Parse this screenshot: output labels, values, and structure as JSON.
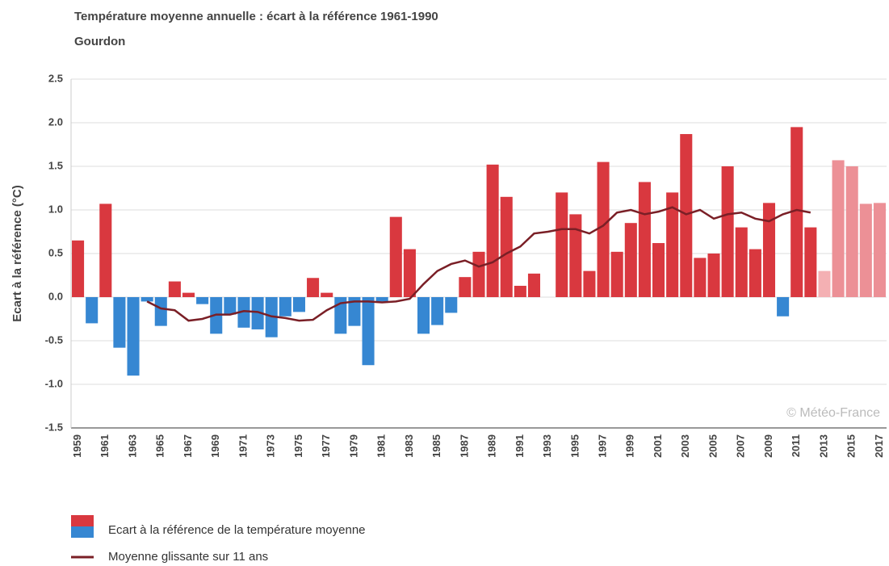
{
  "chart_data": {
    "type": "bar",
    "title": "Température moyenne annuelle : écart à la référence 1961-1990",
    "subtitle": "Gourdon",
    "y_label": "Ecart à la référence (°C)",
    "annotation": "© Météo-France",
    "categories": [
      "1959",
      null,
      "1961",
      null,
      "1963",
      null,
      "1965",
      null,
      "1967",
      null,
      "1969",
      null,
      "1971",
      null,
      "1973",
      null,
      "1975",
      null,
      "1977",
      null,
      "1979",
      null,
      "1981",
      null,
      "1983",
      null,
      "1985",
      null,
      "1987",
      null,
      "1989",
      null,
      "1991",
      null,
      "1993",
      null,
      "1995",
      null,
      "1997",
      null,
      "1999",
      null,
      "2001",
      null,
      "2003",
      null,
      "2005",
      null,
      "2007",
      null,
      "2009",
      null,
      "2011",
      null,
      "2013",
      null,
      "2015",
      null,
      "2017"
    ],
    "series": [
      {
        "name": "Ecart à la référence de la température moyenne",
        "type": "bar",
        "color": [
          "#d9383f",
          "#3687d2"
        ],
        "values": [
          0.65,
          -0.3,
          1.07,
          -0.58,
          -0.9,
          -0.05,
          -0.33,
          0.18,
          0.05,
          -0.08,
          -0.42,
          -0.2,
          -0.35,
          -0.37,
          -0.46,
          -0.22,
          -0.17,
          0.22,
          0.05,
          -0.42,
          -0.33,
          -0.78,
          -0.05,
          0.92,
          0.55,
          -0.42,
          -0.32,
          -0.18,
          0.23,
          0.52,
          1.52,
          1.15,
          0.13,
          0.27,
          0,
          1.2,
          0.95,
          0.3,
          1.55,
          0.52,
          0.85,
          1.32,
          0.62,
          1.2,
          1.87,
          0.45,
          0.5,
          1.5,
          0.8,
          0.55,
          1.08,
          -0.22,
          1.95,
          0.8,
          0.3,
          1.57,
          1.5,
          1.07,
          1.08
        ],
        "colors": [
          "#d9383f",
          "#3687d2",
          "#d9383f",
          "#3687d2",
          "#3687d2",
          "#3687d2",
          "#3687d2",
          "#d9383f",
          "#d9383f",
          "#3687d2",
          "#3687d2",
          "#3687d2",
          "#3687d2",
          "#3687d2",
          "#3687d2",
          "#3687d2",
          "#3687d2",
          "#d9383f",
          "#d9383f",
          "#3687d2",
          "#3687d2",
          "#3687d2",
          "#3687d2",
          "#d9383f",
          "#d9383f",
          "#3687d2",
          "#3687d2",
          "#3687d2",
          "#d9383f",
          "#d9383f",
          "#d9383f",
          "#d9383f",
          "#d9383f",
          "#d9383f",
          "#d9383f",
          "#d9383f",
          "#d9383f",
          "#d9383f",
          "#d9383f",
          "#d9383f",
          "#d9383f",
          "#d9383f",
          "#d9383f",
          "#d9383f",
          "#d9383f",
          "#d9383f",
          "#d9383f",
          "#d9383f",
          "#d9383f",
          "#d9383f",
          "#d9383f",
          "#3687d2",
          "#d9383f",
          "#d9383f",
          "#f4b0b3",
          "#ec9096",
          "#ec9096",
          "#ec9096",
          "#ec9096"
        ]
      },
      {
        "name": "Moyenne glissante sur 11 ans",
        "type": "line",
        "color": "#7a1f26",
        "values": [
          null,
          null,
          null,
          null,
          null,
          -0.05,
          -0.13,
          -0.15,
          -0.27,
          -0.25,
          -0.2,
          -0.2,
          -0.16,
          -0.17,
          -0.22,
          -0.24,
          -0.27,
          -0.26,
          -0.15,
          -0.07,
          -0.05,
          -0.05,
          -0.06,
          -0.05,
          -0.02,
          0.15,
          0.3,
          0.38,
          0.42,
          0.35,
          0.4,
          0.5,
          0.58,
          0.73,
          0.75,
          0.78,
          0.78,
          0.73,
          0.82,
          0.97,
          1.0,
          0.95,
          0.98,
          1.03,
          0.95,
          1.0,
          0.9,
          0.95,
          0.97,
          0.9,
          0.87,
          0.95,
          1.0,
          0.97,
          null,
          null,
          null,
          null,
          null
        ]
      }
    ],
    "ylim": [
      -1.5,
      2.5
    ],
    "yticks": [
      2.5,
      {
        "value": 2,
        "label": "2.0"
      },
      1.5,
      {
        "value": 1,
        "label": "1.0"
      },
      0.5,
      {
        "value": 0,
        "label": "0.0"
      },
      -0.5,
      {
        "value": -1,
        "label": "-1.0"
      },
      -1.5
    ],
    "grid": true
  }
}
